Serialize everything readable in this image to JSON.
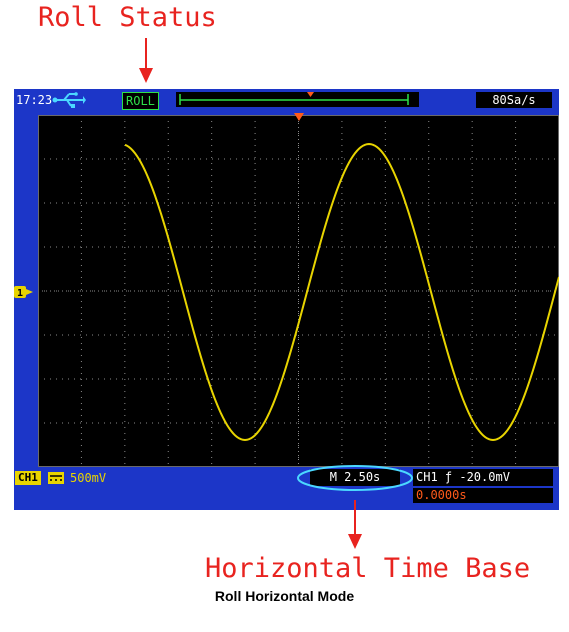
{
  "annotations": {
    "roll_status": "Roll Status",
    "horizontal_time_base": "Horizontal Time Base"
  },
  "figure_caption": "Roll Horizontal Mode",
  "status_bar": {
    "time": "17:23",
    "usb_icon": "usb-icon",
    "roll_badge": "ROLL",
    "sample_rate": "80Sa/s"
  },
  "grid": {
    "divisions_x": 12,
    "divisions_y": 8,
    "channel_marker": "1",
    "trigger_marker": "trigger-position-icon"
  },
  "bottom_bar": {
    "channel_label": "CH1",
    "coupling_icon": "dc-coupling-icon",
    "volts_per_div": "500mV",
    "time_base": "M 2.50s",
    "trigger_info": "CH1 ƒ -20.0mV",
    "trigger_position": "0.0000s"
  },
  "colors": {
    "screen_bg": "#1c36c8",
    "grid_bg": "#000000",
    "trace": "#e8d400",
    "annotation": "#e8231f",
    "roll_badge": "#2ee04a",
    "marker": "#ff5a1a"
  }
}
